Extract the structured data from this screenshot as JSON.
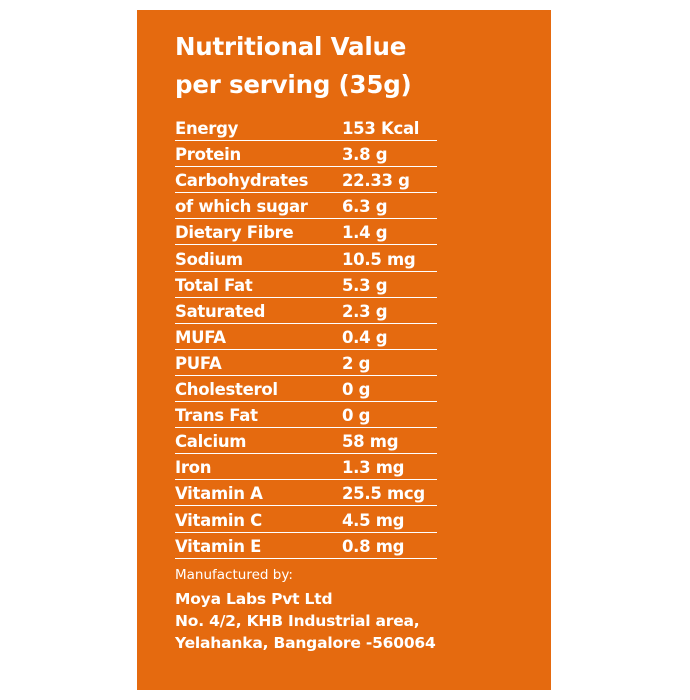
{
  "panel": {
    "background_color": "#e56a0f",
    "text_color": "#ffffff"
  },
  "title": {
    "line1": "Nutritional Value",
    "line2": "per serving (35g)"
  },
  "nutrition": [
    {
      "name": "Energy",
      "amount": "153 Kcal"
    },
    {
      "name": "Protein",
      "amount": "3.8 g"
    },
    {
      "name": "Carbohydrates",
      "amount": "22.33 g"
    },
    {
      "name": "of which sugar",
      "amount": "6.3 g"
    },
    {
      "name": "Dietary Fibre",
      "amount": "1.4 g"
    },
    {
      "name": "Sodium",
      "amount": "10.5 mg"
    },
    {
      "name": "Total Fat",
      "amount": "5.3 g"
    },
    {
      "name": "Saturated",
      "amount": "2.3 g"
    },
    {
      "name": "MUFA",
      "amount": "0.4 g"
    },
    {
      "name": "PUFA",
      "amount": "2 g"
    },
    {
      "name": "Cholesterol",
      "amount": "0 g"
    },
    {
      "name": "Trans Fat",
      "amount": "0 g"
    },
    {
      "name": "Calcium",
      "amount": "58 mg"
    },
    {
      "name": "Iron",
      "amount": "1.3 mg"
    },
    {
      "name": "Vitamin A",
      "amount": "25.5 mcg"
    },
    {
      "name": "Vitamin C",
      "amount": "4.5 mg"
    },
    {
      "name": "Vitamin E",
      "amount": "0.8 mg"
    }
  ],
  "manufacturer": {
    "label": "Manufactured by:",
    "name": "Moya Labs Pvt Ltd",
    "address_line1": "No. 4/2, KHB Industrial area,",
    "address_line2": "Yelahanka, Bangalore -560064"
  }
}
